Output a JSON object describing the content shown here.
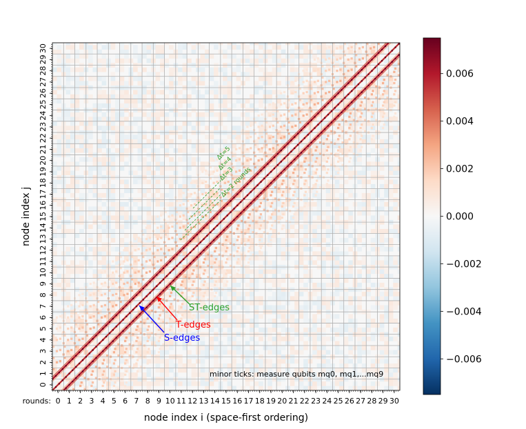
{
  "chart_data": {
    "type": "heatmap",
    "title": "",
    "xlabel": "node index i (space-first ordering)",
    "ylabel": "node index j",
    "x_tick_prefix": "rounds:",
    "x_ticks": [
      "0",
      "1",
      "2",
      "3",
      "4",
      "5",
      "6",
      "7",
      "8",
      "9",
      "10",
      "11",
      "12",
      "13",
      "14",
      "15",
      "16",
      "17",
      "18",
      "19",
      "20",
      "21",
      "22",
      "23",
      "24",
      "25",
      "26",
      "27",
      "28",
      "29",
      "30"
    ],
    "y_ticks": [
      "0",
      "1",
      "2",
      "3",
      "4",
      "5",
      "6",
      "7",
      "8",
      "9",
      "10",
      "11",
      "12",
      "13",
      "14",
      "15",
      "16",
      "17",
      "18",
      "19",
      "20",
      "21",
      "22",
      "23",
      "24",
      "25",
      "26",
      "27",
      "28",
      "29",
      "30"
    ],
    "rounds": 31,
    "measure_qubits_per_round": 10,
    "minor_tick_note": "minor ticks: measure qubits mq0, mq1,...mq9",
    "colorbar": {
      "min": -0.0075,
      "max": 0.0075,
      "ticks": [
        -0.006,
        -0.004,
        -0.002,
        0.0,
        0.002,
        0.004,
        0.006
      ],
      "tick_labels": [
        "−0.006",
        "−0.004",
        "−0.002",
        "0.000",
        "0.002",
        "0.004",
        "0.006"
      ],
      "colormap": "RdBu_r"
    },
    "colormap_stops": [
      "#053061",
      "#2166ac",
      "#4393c3",
      "#92c5de",
      "#d1e5f0",
      "#f7f7f7",
      "#fddbc7",
      "#f4a582",
      "#d6604d",
      "#b2182b",
      "#67001f"
    ],
    "annotations": {
      "s_edges": {
        "label": "S-edges",
        "color": "#0000ff"
      },
      "t_edges": {
        "label": "T-edges",
        "color": "#ff0000"
      },
      "st_edges": {
        "label": "ST-edges",
        "color": "#2ca02c"
      },
      "delta_labels": [
        "Δt=2 rounds",
        "Δt=3",
        "Δt=4",
        "Δt=5"
      ],
      "delta_color": "#2ca02c"
    },
    "grid": true
  }
}
